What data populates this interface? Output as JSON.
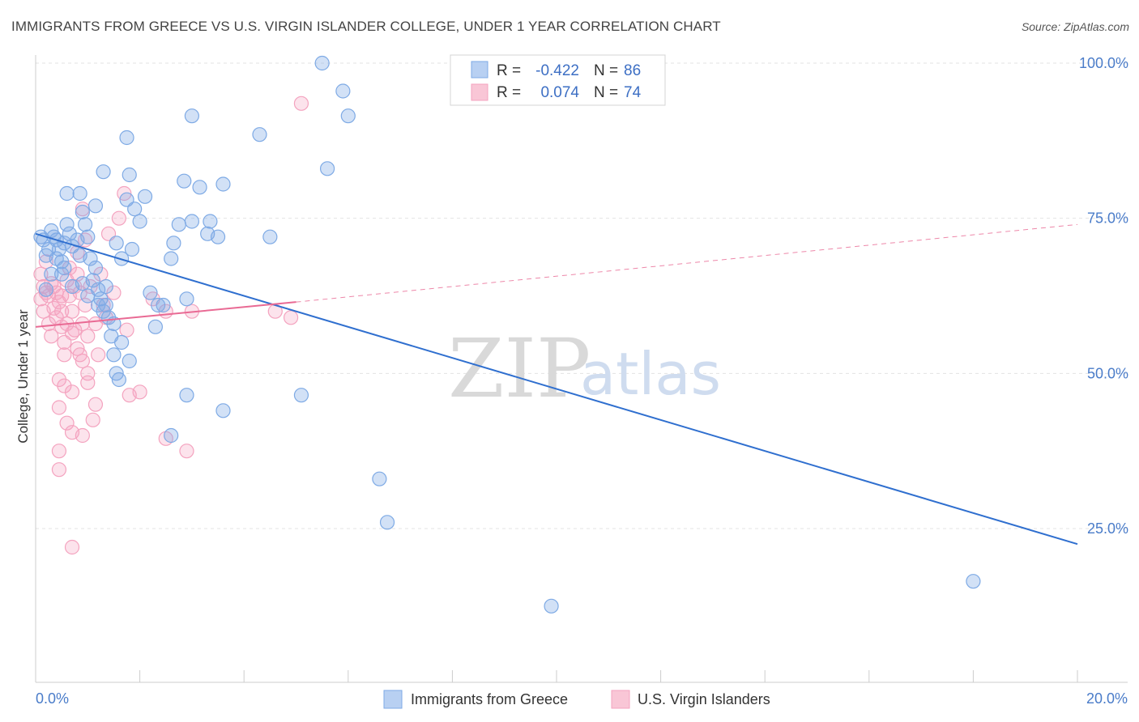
{
  "chart_data": {
    "type": "scatter",
    "title": "IMMIGRANTS FROM GREECE VS U.S. VIRGIN ISLANDER COLLEGE, UNDER 1 YEAR CORRELATION CHART",
    "source": "Source: ZipAtlas.com",
    "ylabel": "College, Under 1 year",
    "xlabel": "",
    "xlim": [
      0,
      20
    ],
    "ylim": [
      0,
      100
    ],
    "x_tick_labels": [
      "0.0%",
      "20.0%"
    ],
    "y_ticks": [
      25,
      50,
      75,
      100
    ],
    "y_tick_labels": [
      "25.0%",
      "50.0%",
      "75.0%",
      "100.0%"
    ],
    "grid": true,
    "legend": {
      "position": "top-center",
      "rows": [
        {
          "r_label": "R =",
          "r_value": "-0.422",
          "n_label": "N =",
          "n_value": "86"
        },
        {
          "r_label": "R =",
          "r_value": "0.074",
          "n_label": "N =",
          "n_value": "74"
        }
      ]
    },
    "watermark": {
      "zip": "ZIP",
      "atlas": "atlas"
    },
    "series": [
      {
        "name": "Immigrants from Greece",
        "color": "#7eaae5",
        "line_color": "#2f6fcf",
        "trend": {
          "x0": 0,
          "y0": 72.5,
          "x1": 20,
          "y1": 22.5,
          "dashed_to": null
        },
        "points": [
          [
            0.1,
            72
          ],
          [
            0.15,
            71.5
          ],
          [
            0.2,
            69
          ],
          [
            0.25,
            70
          ],
          [
            0.3,
            73
          ],
          [
            0.35,
            72
          ],
          [
            0.4,
            71.5
          ],
          [
            0.45,
            70
          ],
          [
            0.5,
            68
          ],
          [
            0.55,
            67
          ],
          [
            0.6,
            74
          ],
          [
            0.65,
            72.5
          ],
          [
            0.7,
            70.5
          ],
          [
            0.8,
            71.5
          ],
          [
            0.85,
            69
          ],
          [
            0.9,
            76
          ],
          [
            0.95,
            74
          ],
          [
            1.0,
            72
          ],
          [
            1.05,
            68.5
          ],
          [
            1.1,
            65
          ],
          [
            1.15,
            67
          ],
          [
            1.2,
            63.5
          ],
          [
            1.25,
            62
          ],
          [
            1.3,
            60
          ],
          [
            1.35,
            61
          ],
          [
            1.4,
            59
          ],
          [
            1.45,
            56
          ],
          [
            1.5,
            53
          ],
          [
            1.55,
            50
          ],
          [
            1.6,
            49
          ],
          [
            0.6,
            79
          ],
          [
            0.85,
            79
          ],
          [
            1.15,
            77
          ],
          [
            1.3,
            82.5
          ],
          [
            1.55,
            71
          ],
          [
            1.65,
            68.5
          ],
          [
            1.75,
            78
          ],
          [
            1.85,
            70
          ],
          [
            1.9,
            76.5
          ],
          [
            2.0,
            74.5
          ],
          [
            2.1,
            78.5
          ],
          [
            2.2,
            63
          ],
          [
            2.3,
            57.5
          ],
          [
            2.35,
            61
          ],
          [
            2.6,
            68.5
          ],
          [
            2.65,
            71
          ],
          [
            2.75,
            74
          ],
          [
            2.9,
            62
          ],
          [
            3.0,
            74.5
          ],
          [
            3.15,
            80
          ],
          [
            3.3,
            72.5
          ],
          [
            3.35,
            74.5
          ],
          [
            3.5,
            72
          ],
          [
            3.6,
            80.5
          ],
          [
            1.8,
            82
          ],
          [
            2.85,
            81
          ],
          [
            3.0,
            91.5
          ],
          [
            4.3,
            88.5
          ],
          [
            4.5,
            72
          ],
          [
            5.1,
            46.5
          ],
          [
            5.5,
            100
          ],
          [
            5.6,
            83
          ],
          [
            5.9,
            95.5
          ],
          [
            6.0,
            91.5
          ],
          [
            0.5,
            66
          ],
          [
            0.7,
            64
          ],
          [
            0.9,
            64.5
          ],
          [
            1.0,
            62.5
          ],
          [
            1.2,
            61
          ],
          [
            1.35,
            64
          ],
          [
            1.5,
            58
          ],
          [
            1.65,
            55
          ],
          [
            1.8,
            52
          ],
          [
            2.45,
            61
          ],
          [
            2.9,
            46.5
          ],
          [
            3.6,
            44
          ],
          [
            2.6,
            40
          ],
          [
            6.6,
            33
          ],
          [
            6.75,
            26
          ],
          [
            9.9,
            12.5
          ],
          [
            18.0,
            16.5
          ],
          [
            0.3,
            66
          ],
          [
            0.4,
            68.5
          ],
          [
            1.75,
            88
          ],
          [
            0.2,
            63.5
          ],
          [
            0.55,
            71
          ]
        ]
      },
      {
        "name": "U.S. Virgin Islanders",
        "color": "#f4a3bf",
        "line_color": "#e96a94",
        "trend": {
          "x0": 0,
          "y0": 57.5,
          "x1": 5,
          "y1": 61.5,
          "dashed_to": {
            "x": 20,
            "y": 74
          }
        },
        "points": [
          [
            0.1,
            62
          ],
          [
            0.15,
            60
          ],
          [
            0.2,
            63
          ],
          [
            0.25,
            58
          ],
          [
            0.3,
            56
          ],
          [
            0.35,
            64
          ],
          [
            0.4,
            59
          ],
          [
            0.45,
            61.5
          ],
          [
            0.5,
            57.5
          ],
          [
            0.55,
            55
          ],
          [
            0.6,
            65
          ],
          [
            0.65,
            62.5
          ],
          [
            0.7,
            60
          ],
          [
            0.75,
            57
          ],
          [
            0.8,
            66
          ],
          [
            0.85,
            63
          ],
          [
            0.9,
            58
          ],
          [
            0.95,
            61
          ],
          [
            1.0,
            56
          ],
          [
            1.05,
            64
          ],
          [
            0.1,
            66
          ],
          [
            0.2,
            68
          ],
          [
            0.3,
            64.5
          ],
          [
            0.4,
            63
          ],
          [
            0.5,
            60
          ],
          [
            0.6,
            58
          ],
          [
            0.7,
            56.5
          ],
          [
            0.8,
            54
          ],
          [
            0.9,
            52
          ],
          [
            1.0,
            50
          ],
          [
            0.45,
            49
          ],
          [
            0.55,
            48
          ],
          [
            0.7,
            47
          ],
          [
            0.85,
            53
          ],
          [
            1.0,
            48.5
          ],
          [
            1.15,
            45
          ],
          [
            0.45,
            44.5
          ],
          [
            0.6,
            42
          ],
          [
            0.7,
            40.5
          ],
          [
            0.9,
            40
          ],
          [
            1.1,
            42.5
          ],
          [
            0.45,
            37.5
          ],
          [
            0.45,
            34.5
          ],
          [
            0.7,
            22
          ],
          [
            1.2,
            53
          ],
          [
            1.35,
            59
          ],
          [
            1.5,
            63
          ],
          [
            1.6,
            75
          ],
          [
            1.75,
            57
          ],
          [
            1.8,
            46.5
          ],
          [
            2.25,
            62
          ],
          [
            2.5,
            60
          ],
          [
            2.5,
            39.5
          ],
          [
            2.9,
            37.5
          ],
          [
            3.0,
            60
          ],
          [
            4.6,
            60
          ],
          [
            4.9,
            59
          ],
          [
            5.1,
            93.5
          ],
          [
            1.7,
            79
          ],
          [
            0.9,
            76.5
          ],
          [
            0.25,
            62.5
          ],
          [
            0.35,
            60.5
          ],
          [
            0.5,
            62.5
          ],
          [
            0.65,
            67
          ],
          [
            0.8,
            69.5
          ],
          [
            0.95,
            71.5
          ],
          [
            1.25,
            66
          ],
          [
            1.4,
            72.5
          ],
          [
            0.15,
            64
          ],
          [
            0.55,
            53
          ],
          [
            1.15,
            58
          ],
          [
            1.3,
            61
          ],
          [
            2.0,
            47
          ],
          [
            0.75,
            64
          ]
        ]
      }
    ]
  }
}
